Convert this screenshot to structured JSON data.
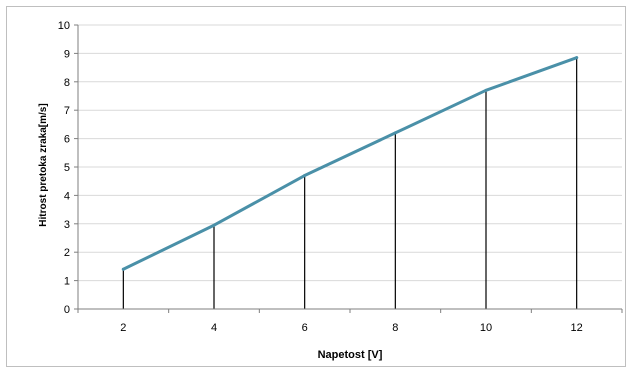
{
  "chart_data": {
    "type": "line",
    "title": "",
    "xlabel": "Napetost [V]",
    "ylabel": "Hitrost pretoka zraka[m/s]",
    "x": [
      2,
      4,
      6,
      8,
      10,
      12
    ],
    "categories": [
      "2",
      "4",
      "6",
      "8",
      "10",
      "12"
    ],
    "series": [
      {
        "values": [
          1.4,
          2.95,
          4.7,
          6.2,
          7.7,
          8.85
        ],
        "color": "#4a90a8"
      }
    ],
    "ylim": [
      0,
      10
    ],
    "yticks": [
      "0",
      "1",
      "2",
      "3",
      "4",
      "5",
      "6",
      "7",
      "8",
      "9",
      "10"
    ],
    "grid": "horizontal",
    "drop_lines": true,
    "legend": "none"
  }
}
